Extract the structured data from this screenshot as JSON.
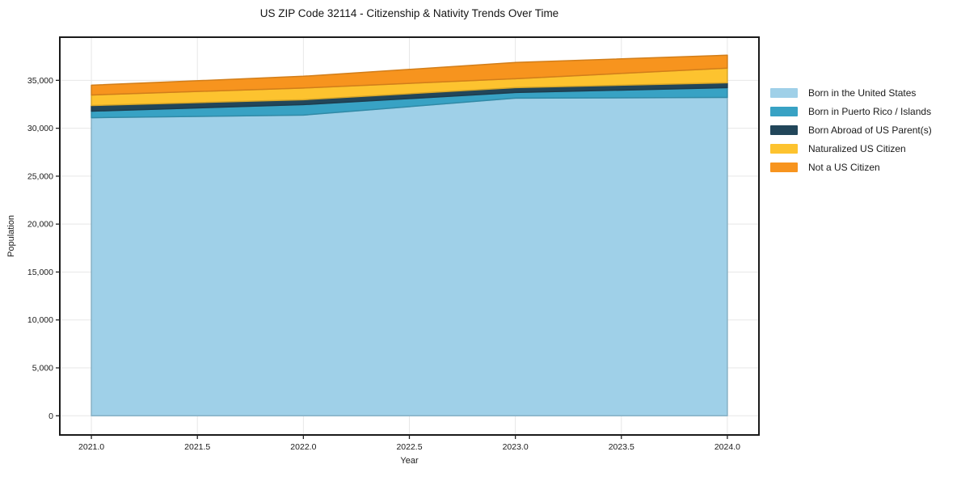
{
  "chart_data": {
    "type": "area",
    "stacked": true,
    "title": "US ZIP Code 32114 - Citizenship & Nativity Trends Over Time",
    "xlabel": "Year",
    "ylabel": "Population",
    "x": [
      2021,
      2022,
      2023,
      2024
    ],
    "series": [
      {
        "name": "Born in the United States",
        "color": "#9FD0E8",
        "values": [
          31100,
          31370,
          33140,
          33220
        ]
      },
      {
        "name": "Born in Puerto Rico / Islands",
        "color": "#38A2C4",
        "values": [
          680,
          1095,
          590,
          1015
        ]
      },
      {
        "name": "Born Abroad of US Parent(s)",
        "color": "#22465A",
        "values": [
          590,
          510,
          510,
          510
        ]
      },
      {
        "name": "Naturalized US Citizen",
        "color": "#FDC32F",
        "values": [
          1100,
          1225,
          930,
          1525
        ]
      },
      {
        "name": "Not a US Citizen",
        "color": "#F7941E",
        "values": [
          1020,
          1225,
          1690,
          1350
        ]
      }
    ],
    "totals": [
      34490,
      35425,
      36860,
      37620
    ],
    "xticks": [
      2021.0,
      2021.5,
      2022.0,
      2022.5,
      2023.0,
      2023.5,
      2024.0
    ],
    "yticks": [
      0,
      5000,
      10000,
      15000,
      20000,
      25000,
      30000,
      35000
    ],
    "xlim": [
      2020.851,
      2024.149
    ],
    "ylim": [
      -2000,
      39500
    ],
    "grid": true,
    "legend_position": "right",
    "colors": {
      "grid": "#E7E7E7",
      "spine": "#1A1A1A",
      "tick": "#222222",
      "text": "#1A1A1A",
      "background": "#FFFFFF"
    }
  }
}
